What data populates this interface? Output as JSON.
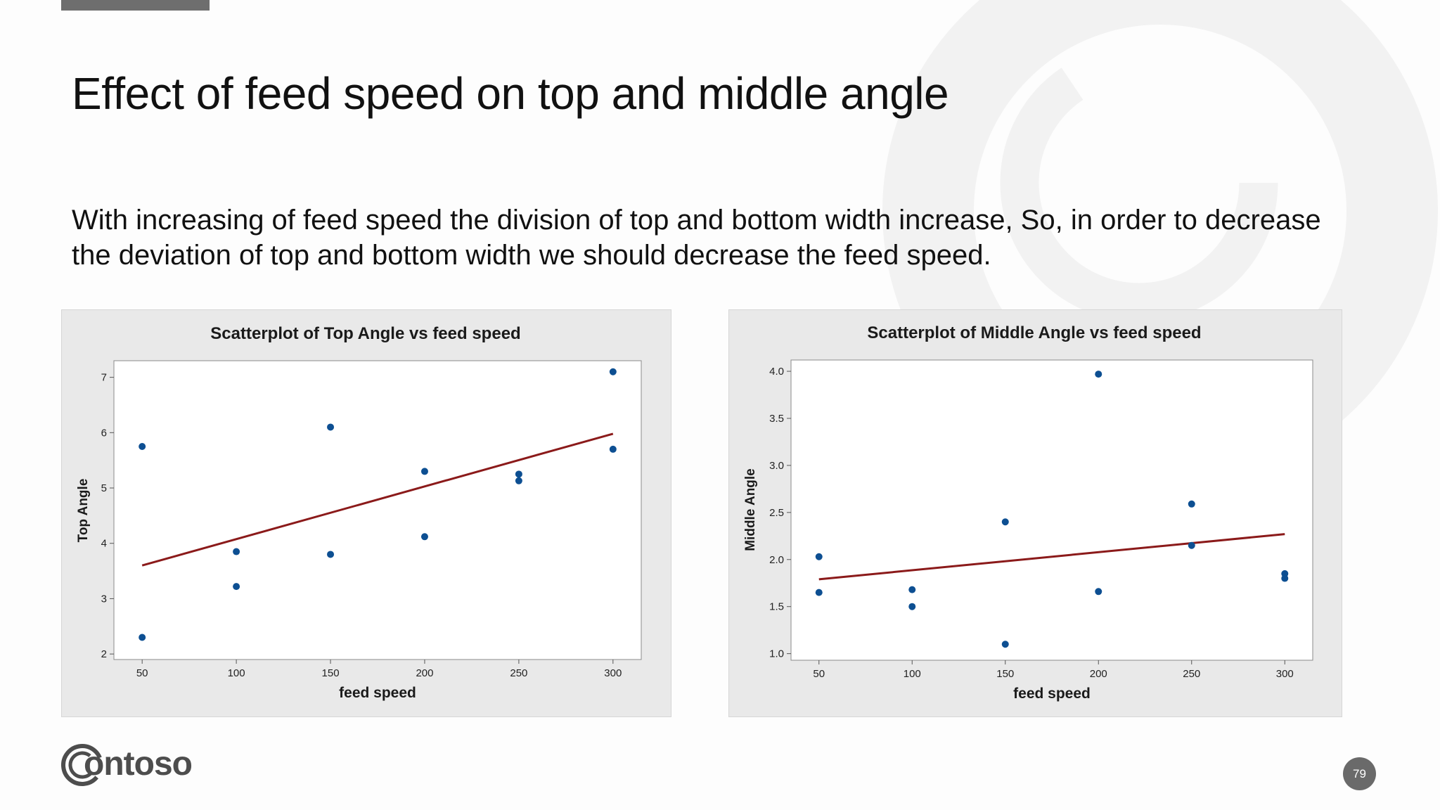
{
  "slide": {
    "title": "Effect of feed speed on top and middle angle",
    "body": "With increasing of feed speed the division of top and bottom width increase, So, in order to decrease the deviation of top and bottom width we should decrease the feed speed.",
    "logo_text": "ontoso",
    "page_number": "79"
  },
  "colors": {
    "point": "#0d4f92",
    "fit_line": "#8b1a1a",
    "panel_bg": "#e9e9e9",
    "plot_bg": "#ffffff",
    "top_bar": "#6e6e6e",
    "background_arc": "#f2f2f2"
  },
  "chart_data": [
    {
      "type": "scatter",
      "title": "Scatterplot of Top Angle vs feed speed",
      "xlabel": "feed speed",
      "ylabel": "Top Angle",
      "xlim": [
        35,
        315
      ],
      "ylim": [
        1.9,
        7.3
      ],
      "xticks": [
        50,
        100,
        150,
        200,
        250,
        300
      ],
      "yticks": [
        2,
        3,
        4,
        5,
        6,
        7
      ],
      "grid": false,
      "points": [
        {
          "x": 50,
          "y": 5.75
        },
        {
          "x": 50,
          "y": 2.3
        },
        {
          "x": 100,
          "y": 3.85
        },
        {
          "x": 100,
          "y": 3.22
        },
        {
          "x": 150,
          "y": 6.1
        },
        {
          "x": 150,
          "y": 3.8
        },
        {
          "x": 200,
          "y": 5.3
        },
        {
          "x": 200,
          "y": 4.12
        },
        {
          "x": 250,
          "y": 5.25
        },
        {
          "x": 250,
          "y": 5.13
        },
        {
          "x": 300,
          "y": 7.1
        },
        {
          "x": 300,
          "y": 5.7
        }
      ],
      "fit_line": [
        {
          "x": 50,
          "y": 3.6
        },
        {
          "x": 300,
          "y": 5.98
        }
      ]
    },
    {
      "type": "scatter",
      "title": "Scatterplot of Middle Angle vs feed speed",
      "xlabel": "feed speed",
      "ylabel": "Middle Angle",
      "xlim": [
        35,
        315
      ],
      "ylim": [
        0.93,
        4.12
      ],
      "xticks": [
        50,
        100,
        150,
        200,
        250,
        300
      ],
      "yticks": [
        1.0,
        1.5,
        2.0,
        2.5,
        3.0,
        3.5,
        4.0
      ],
      "ytick_labels": [
        "1.0",
        "1.5",
        "2.0",
        "2.5",
        "3.0",
        "3.5",
        "4.0"
      ],
      "grid": false,
      "points": [
        {
          "x": 50,
          "y": 2.03
        },
        {
          "x": 50,
          "y": 1.65
        },
        {
          "x": 100,
          "y": 1.68
        },
        {
          "x": 100,
          "y": 1.5
        },
        {
          "x": 150,
          "y": 2.4
        },
        {
          "x": 150,
          "y": 1.1
        },
        {
          "x": 200,
          "y": 3.97
        },
        {
          "x": 200,
          "y": 1.66
        },
        {
          "x": 250,
          "y": 2.59
        },
        {
          "x": 250,
          "y": 2.15
        },
        {
          "x": 300,
          "y": 1.85
        },
        {
          "x": 300,
          "y": 1.8
        }
      ],
      "fit_line": [
        {
          "x": 50,
          "y": 1.79
        },
        {
          "x": 300,
          "y": 2.27
        }
      ]
    }
  ]
}
